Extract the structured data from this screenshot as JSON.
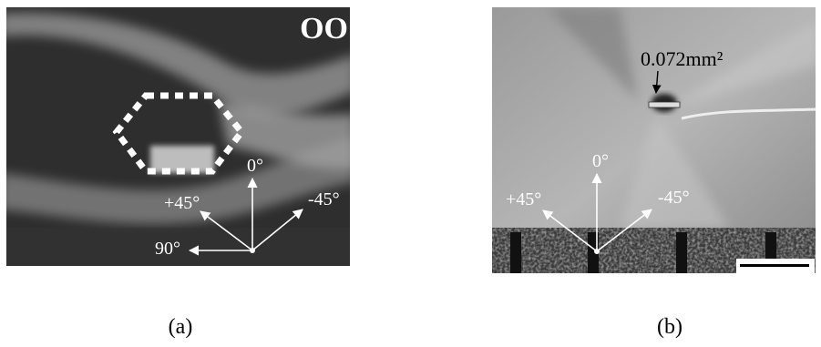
{
  "panels": [
    {
      "label": "(a)",
      "corner_text": "OO",
      "directions": [
        "0°",
        "+45°",
        "-45°",
        "90°"
      ]
    },
    {
      "label": "(b)",
      "annotation": "0.072mm²",
      "directions": [
        "0°",
        "+45°",
        "-45°"
      ]
    }
  ]
}
